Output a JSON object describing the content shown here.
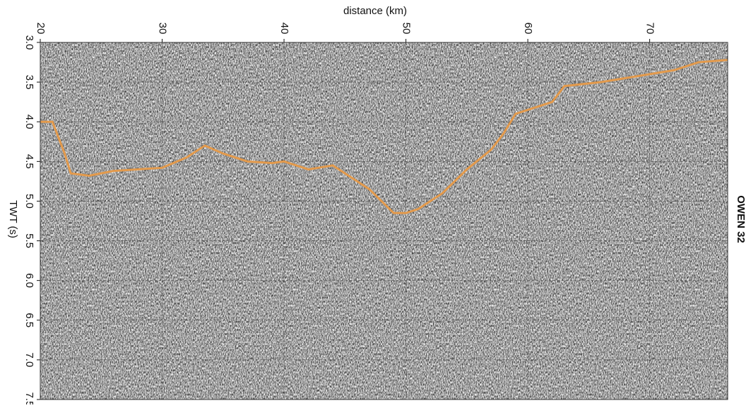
{
  "chart_data": {
    "type": "seismic",
    "title": "OWEN 32",
    "x_label": "distance (km)",
    "y_label": "TWT (s)",
    "xlim": [
      20,
      76.4
    ],
    "ylim": [
      3.0,
      7.5
    ],
    "y_inverted": true,
    "xticks": [
      20,
      30,
      40,
      50,
      60,
      70
    ],
    "yticks": [
      {
        "value": 3.0,
        "label": "3.0"
      },
      {
        "value": 3.5,
        "label": "3.5"
      },
      {
        "value": 4.0,
        "label": "4.0"
      },
      {
        "value": 4.5,
        "label": "4.5"
      },
      {
        "value": 5.0,
        "label": "5.0"
      },
      {
        "value": 5.5,
        "label": "5.5"
      },
      {
        "value": 6.0,
        "label": "6.0"
      },
      {
        "value": 6.5,
        "label": "6.5"
      },
      {
        "value": 7.0,
        "label": "7.0"
      },
      {
        "value": 7.5,
        "label": "7.5"
      }
    ],
    "grid": true,
    "series": [
      {
        "color": "#e39a4c",
        "x": [
          20,
          21,
          22,
          22.5,
          24,
          26,
          28,
          30,
          32,
          33.5,
          35,
          37,
          39,
          40,
          42,
          44,
          45,
          47,
          49,
          50,
          51,
          53,
          55,
          57,
          58,
          59,
          62,
          63,
          66,
          70,
          72,
          74,
          76.4
        ],
        "values": [
          4.0,
          4.0,
          4.4,
          4.65,
          4.68,
          4.62,
          4.6,
          4.58,
          4.45,
          4.3,
          4.4,
          4.5,
          4.52,
          4.5,
          4.6,
          4.55,
          4.65,
          4.85,
          5.15,
          5.15,
          5.1,
          4.9,
          4.6,
          4.35,
          4.15,
          3.9,
          3.75,
          3.55,
          3.5,
          3.4,
          3.35,
          3.25,
          3.22
        ]
      }
    ]
  }
}
